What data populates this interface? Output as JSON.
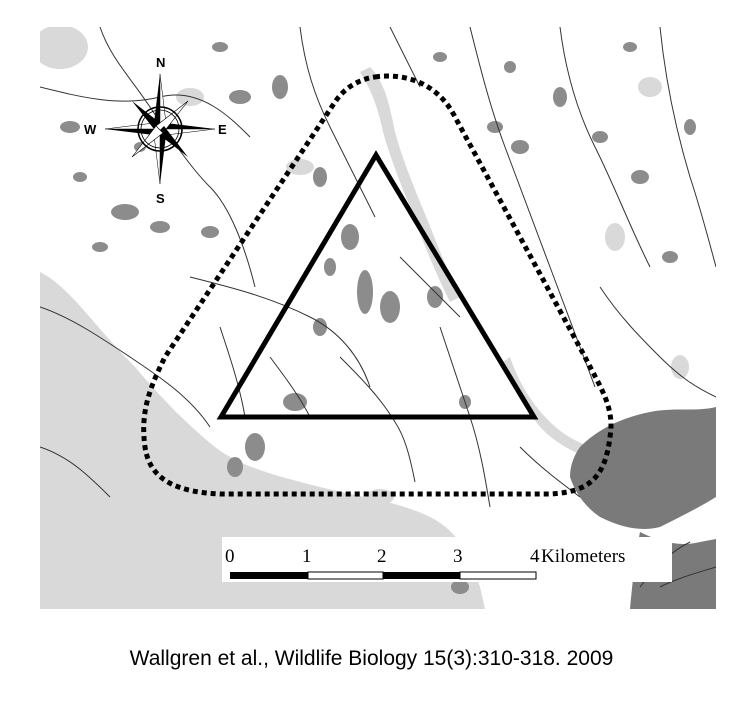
{
  "compass": {
    "north": "N",
    "south": "S",
    "east": "E",
    "west": "W"
  },
  "scale_bar": {
    "labels": [
      "0",
      "1",
      "2",
      "3",
      "4"
    ],
    "unit": "Kilometers"
  },
  "caption": "Wallgren et al., Wildlife Biology 15(3):310-318. 2009",
  "colors": {
    "water": "#d9d9d9",
    "wetland": "#8c8c8c",
    "urban": "#7a7a7a",
    "roads": "#333333",
    "triangle": "#000000",
    "buffer": "#000000"
  }
}
